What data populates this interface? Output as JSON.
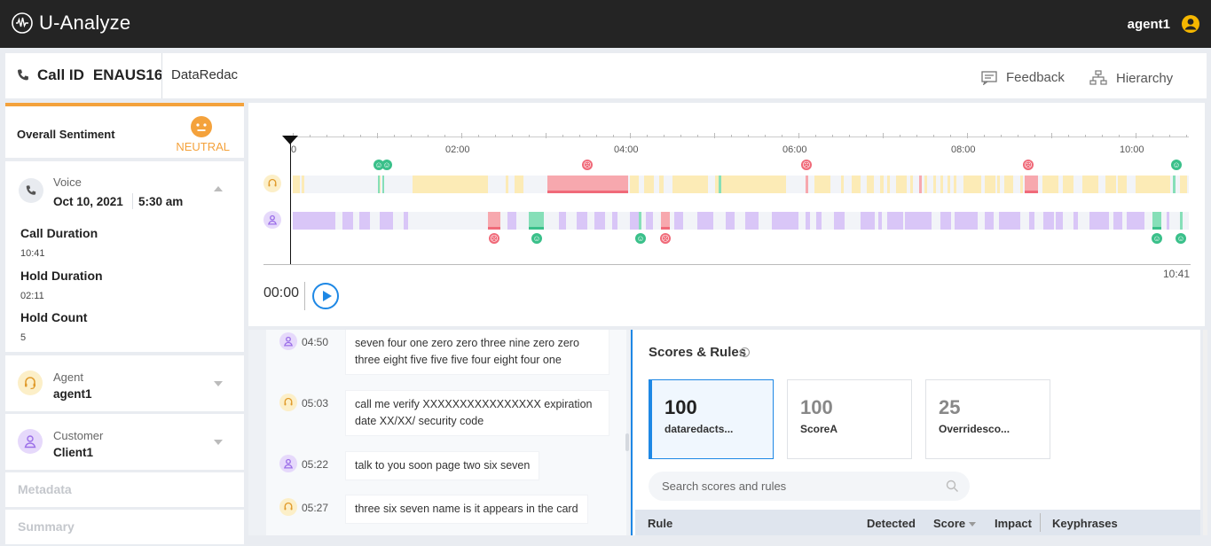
{
  "app": {
    "name": "U-Analyze",
    "user": "agent1"
  },
  "call": {
    "id_label": "Call ID",
    "id": "ENAUS16",
    "tag": "DataRedac",
    "feedback": "Feedback",
    "hierarchy": "Hierarchy"
  },
  "sentiment": {
    "label": "Overall Sentiment",
    "value": "NEUTRAL"
  },
  "voice": {
    "label": "Voice",
    "date": "Oct 10, 2021",
    "time": "5:30 am",
    "stats": [
      {
        "label": "Call Duration",
        "value": "10:41"
      },
      {
        "label": "Hold Duration",
        "value": "02:11"
      },
      {
        "label": "Hold Count",
        "value": "5"
      }
    ]
  },
  "agent": {
    "label": "Agent",
    "value": "agent1"
  },
  "customer": {
    "label": "Customer",
    "value": "Client1"
  },
  "metadata": {
    "label": "Metadata"
  },
  "summary": {
    "label": "Summary"
  },
  "timeline": {
    "ticks": [
      "0",
      "02:00",
      "04:00",
      "06:00",
      "08:00",
      "10:00"
    ],
    "current_time": "00:00",
    "total_time": "10:41"
  },
  "transcript": [
    {
      "speaker": "customer",
      "time": "04:50",
      "text": "seven four one zero zero three nine zero zero three eight five five five four eight four one"
    },
    {
      "speaker": "agent",
      "time": "05:03",
      "text": "call me verify XXXXXXXXXXXXXXXX expiration date XX/XX/ security code"
    },
    {
      "speaker": "customer",
      "time": "05:22",
      "text": "talk to you soon page two six seven"
    },
    {
      "speaker": "agent",
      "time": "05:27",
      "text": "three six seven name is it appears in the card"
    }
  ],
  "scores": {
    "title": "Scores & Rules",
    "cards": [
      {
        "value": "100",
        "name": "datare­dacts...",
        "selected": true
      },
      {
        "value": "100",
        "name": "ScoreA",
        "selected": false
      },
      {
        "value": "25",
        "name": "Overridesco...",
        "selected": false
      }
    ],
    "search_placeholder": "Search scores and rules",
    "columns": [
      "Rule",
      "Detected",
      "Score",
      "Impact",
      "Keyphrases"
    ]
  }
}
